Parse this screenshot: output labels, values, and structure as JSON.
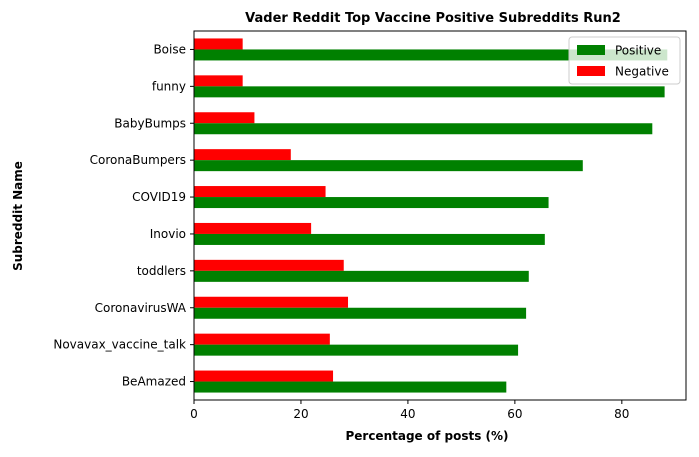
{
  "chart_data": {
    "type": "bar",
    "orientation": "horizontal",
    "title": "Vader Reddit Top Vaccine Positive Subreddits Run2",
    "xlabel": "Percentage of posts (%)",
    "ylabel": "Subreddit Name",
    "xlim": [
      0,
      92
    ],
    "xticks": [
      0,
      20,
      40,
      60,
      80
    ],
    "categories": [
      "Boise",
      "funny",
      "BabyBumps",
      "CoronaBumpers",
      "COVID19",
      "Inovio",
      "toddlers",
      "CoronavirusWA",
      "Novavax_vaccine_talk",
      "BeAmazed"
    ],
    "series": [
      {
        "name": "Positive",
        "color": "#008000",
        "values": [
          88.5,
          88.0,
          85.7,
          72.7,
          66.3,
          65.6,
          62.6,
          62.1,
          60.6,
          58.4
        ]
      },
      {
        "name": "Negative",
        "color": "#ff0000",
        "values": [
          9.1,
          9.1,
          11.3,
          18.1,
          24.6,
          21.9,
          28.0,
          28.8,
          25.4,
          26.0
        ]
      }
    ],
    "legend_position": "top-right",
    "grid": false
  }
}
